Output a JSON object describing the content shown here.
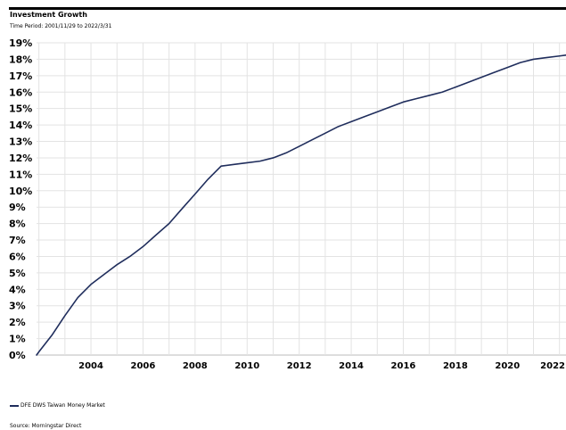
{
  "chart_data": {
    "type": "line",
    "title": "Investment Growth",
    "subtitle": "Time Period: 2001/11/29 to 2022/3/31",
    "xlabel": "",
    "ylabel": "",
    "x_ticks": [
      "2004",
      "2006",
      "2008",
      "2010",
      "2012",
      "2014",
      "2016",
      "2018",
      "2020",
      "2022"
    ],
    "y_ticks": [
      "0%",
      "1%",
      "2%",
      "3%",
      "4%",
      "5%",
      "6%",
      "7%",
      "8%",
      "9%",
      "10%",
      "11%",
      "12%",
      "13%",
      "14%",
      "15%",
      "16%",
      "17%",
      "18%",
      "19%"
    ],
    "xlim": [
      "2001-11-29",
      "2022-03-31"
    ],
    "ylim": [
      0,
      19
    ],
    "grid": true,
    "legend_position": "bottom-left",
    "series": [
      {
        "name": "DFE DWS Taiwan Money Market",
        "color": "#1f2d5c",
        "x": [
          "2001-11-29",
          "2002-01-01",
          "2002-07-01",
          "2003-01-01",
          "2003-07-01",
          "2004-01-01",
          "2004-07-01",
          "2005-01-01",
          "2005-07-01",
          "2006-01-01",
          "2006-07-01",
          "2007-01-01",
          "2007-07-01",
          "2008-01-01",
          "2008-07-01",
          "2009-01-01",
          "2009-07-01",
          "2010-01-01",
          "2010-07-01",
          "2011-01-01",
          "2011-07-01",
          "2012-01-01",
          "2012-07-01",
          "2013-01-01",
          "2013-07-01",
          "2014-01-01",
          "2014-07-01",
          "2015-01-01",
          "2015-07-01",
          "2016-01-01",
          "2016-07-01",
          "2017-01-01",
          "2017-07-01",
          "2018-01-01",
          "2018-07-01",
          "2019-01-01",
          "2019-07-01",
          "2020-01-01",
          "2020-07-01",
          "2021-01-01",
          "2021-07-01",
          "2022-01-01",
          "2022-03-31"
        ],
        "values": [
          0.0,
          0.2,
          1.2,
          2.4,
          3.5,
          4.3,
          4.9,
          5.5,
          6.0,
          6.6,
          7.3,
          8.0,
          8.9,
          9.8,
          10.7,
          11.5,
          11.6,
          11.7,
          11.8,
          12.0,
          12.3,
          12.7,
          13.1,
          13.5,
          13.9,
          14.2,
          14.5,
          14.8,
          15.1,
          15.4,
          15.6,
          15.8,
          16.0,
          16.3,
          16.6,
          16.9,
          17.2,
          17.5,
          17.8,
          18.0,
          18.1,
          18.2,
          18.25
        ]
      }
    ]
  },
  "legend": {
    "label": "DFE DWS Taiwan Money Market"
  },
  "source": "Source: Morningstar Direct"
}
